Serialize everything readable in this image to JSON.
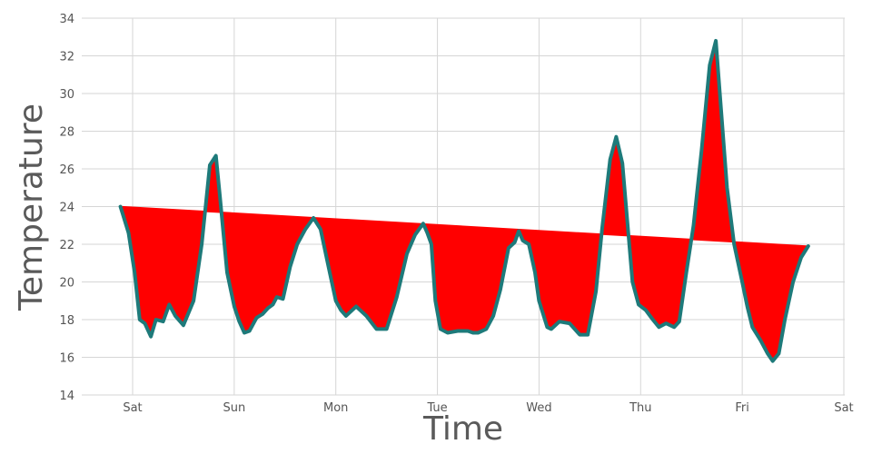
{
  "chart_data": {
    "type": "area",
    "title": "",
    "xlabel": "Time",
    "ylabel": "Temperature",
    "ylim": [
      14,
      34
    ],
    "yticks": [
      14,
      16,
      18,
      20,
      22,
      24,
      26,
      28,
      30,
      32,
      34
    ],
    "xlim": [
      -0.12,
      7.0
    ],
    "xticks": [
      {
        "x": 0,
        "label": "Sat"
      },
      {
        "x": 1,
        "label": "Sun"
      },
      {
        "x": 2,
        "label": "Mon"
      },
      {
        "x": 3,
        "label": "Tue"
      },
      {
        "x": 4,
        "label": "Wed"
      },
      {
        "x": 5,
        "label": "Thu"
      },
      {
        "x": 6,
        "label": "Fri"
      },
      {
        "x": 7,
        "label": "Sat"
      }
    ],
    "grid": true,
    "series": [
      {
        "color": "#1e7a7a",
        "fill_color": "#ff0000",
        "points": [
          [
            -0.12,
            24.0
          ],
          [
            -0.04,
            22.6
          ],
          [
            0.02,
            20.5
          ],
          [
            0.07,
            18.0
          ],
          [
            0.12,
            17.8
          ],
          [
            0.18,
            17.1
          ],
          [
            0.23,
            18.0
          ],
          [
            0.3,
            17.9
          ],
          [
            0.36,
            18.8
          ],
          [
            0.42,
            18.2
          ],
          [
            0.5,
            17.7
          ],
          [
            0.6,
            19.0
          ],
          [
            0.68,
            22.0
          ],
          [
            0.76,
            26.2
          ],
          [
            0.82,
            26.7
          ],
          [
            0.86,
            24.5
          ],
          [
            0.93,
            20.5
          ],
          [
            1.0,
            18.7
          ],
          [
            1.05,
            17.9
          ],
          [
            1.1,
            17.3
          ],
          [
            1.15,
            17.4
          ],
          [
            1.22,
            18.1
          ],
          [
            1.28,
            18.3
          ],
          [
            1.33,
            18.6
          ],
          [
            1.38,
            18.8
          ],
          [
            1.42,
            19.2
          ],
          [
            1.48,
            19.1
          ],
          [
            1.55,
            20.8
          ],
          [
            1.62,
            22.0
          ],
          [
            1.7,
            22.8
          ],
          [
            1.78,
            23.4
          ],
          [
            1.85,
            22.8
          ],
          [
            1.92,
            21.0
          ],
          [
            2.0,
            19.0
          ],
          [
            2.05,
            18.5
          ],
          [
            2.1,
            18.2
          ],
          [
            2.2,
            18.7
          ],
          [
            2.3,
            18.2
          ],
          [
            2.4,
            17.5
          ],
          [
            2.5,
            17.5
          ],
          [
            2.6,
            19.2
          ],
          [
            2.7,
            21.5
          ],
          [
            2.78,
            22.5
          ],
          [
            2.86,
            23.1
          ],
          [
            2.9,
            22.6
          ],
          [
            2.94,
            22.0
          ],
          [
            2.98,
            19.0
          ],
          [
            3.03,
            17.5
          ],
          [
            3.1,
            17.3
          ],
          [
            3.2,
            17.4
          ],
          [
            3.3,
            17.4
          ],
          [
            3.35,
            17.3
          ],
          [
            3.4,
            17.3
          ],
          [
            3.48,
            17.5
          ],
          [
            3.55,
            18.2
          ],
          [
            3.62,
            19.6
          ],
          [
            3.7,
            21.8
          ],
          [
            3.76,
            22.1
          ],
          [
            3.8,
            22.7
          ],
          [
            3.84,
            22.2
          ],
          [
            3.9,
            22.0
          ],
          [
            3.96,
            20.5
          ],
          [
            4.0,
            19.0
          ],
          [
            4.08,
            17.6
          ],
          [
            4.12,
            17.5
          ],
          [
            4.2,
            17.9
          ],
          [
            4.3,
            17.8
          ],
          [
            4.4,
            17.2
          ],
          [
            4.48,
            17.2
          ],
          [
            4.56,
            19.5
          ],
          [
            4.62,
            22.8
          ],
          [
            4.7,
            26.5
          ],
          [
            4.76,
            27.7
          ],
          [
            4.82,
            26.3
          ],
          [
            4.88,
            22.5
          ],
          [
            4.92,
            20.0
          ],
          [
            4.98,
            18.8
          ],
          [
            5.05,
            18.5
          ],
          [
            5.12,
            18.0
          ],
          [
            5.18,
            17.6
          ],
          [
            5.25,
            17.8
          ],
          [
            5.33,
            17.6
          ],
          [
            5.38,
            17.9
          ],
          [
            5.45,
            20.5
          ],
          [
            5.52,
            23.0
          ],
          [
            5.6,
            27.0
          ],
          [
            5.68,
            31.5
          ],
          [
            5.74,
            32.8
          ],
          [
            5.78,
            30.0
          ],
          [
            5.85,
            25.0
          ],
          [
            5.92,
            22.0
          ],
          [
            6.0,
            20.0
          ],
          [
            6.05,
            18.7
          ],
          [
            6.1,
            17.6
          ],
          [
            6.18,
            16.9
          ],
          [
            6.25,
            16.2
          ],
          [
            6.3,
            15.8
          ],
          [
            6.36,
            16.2
          ],
          [
            6.42,
            18.0
          ],
          [
            6.5,
            20.0
          ],
          [
            6.58,
            21.3
          ],
          [
            6.65,
            21.9
          ]
        ]
      },
      {
        "type": "trend",
        "color": "#ff0000",
        "points": [
          [
            -0.12,
            24.0
          ],
          [
            6.65,
            21.9
          ]
        ]
      }
    ]
  }
}
